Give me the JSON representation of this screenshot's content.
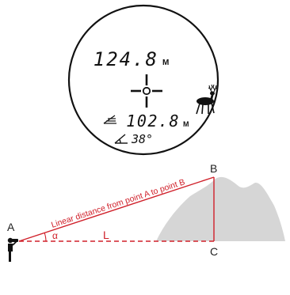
{
  "colors": {
    "red": "#d0202a",
    "mountain": "#d6d6d6",
    "ink": "#111111"
  },
  "icons": {
    "target_icon": "deer-icon",
    "mode_icon": "slope-mode-icon",
    "angle_icon": "angle-icon",
    "reticle_icon": "crosshair-icon",
    "person_icon": "person-with-rangefinder-icon"
  },
  "display": {
    "main_distance": "124.8",
    "main_unit": "M",
    "horizontal_distance": "102.8",
    "horizontal_unit": "M",
    "angle_value": "38°"
  },
  "geometry_labels": {
    "point_a": "A",
    "point_b": "B",
    "point_c": "C",
    "line_label": "Linear distance from point A to point B",
    "alpha": "α",
    "l_label": "L"
  }
}
